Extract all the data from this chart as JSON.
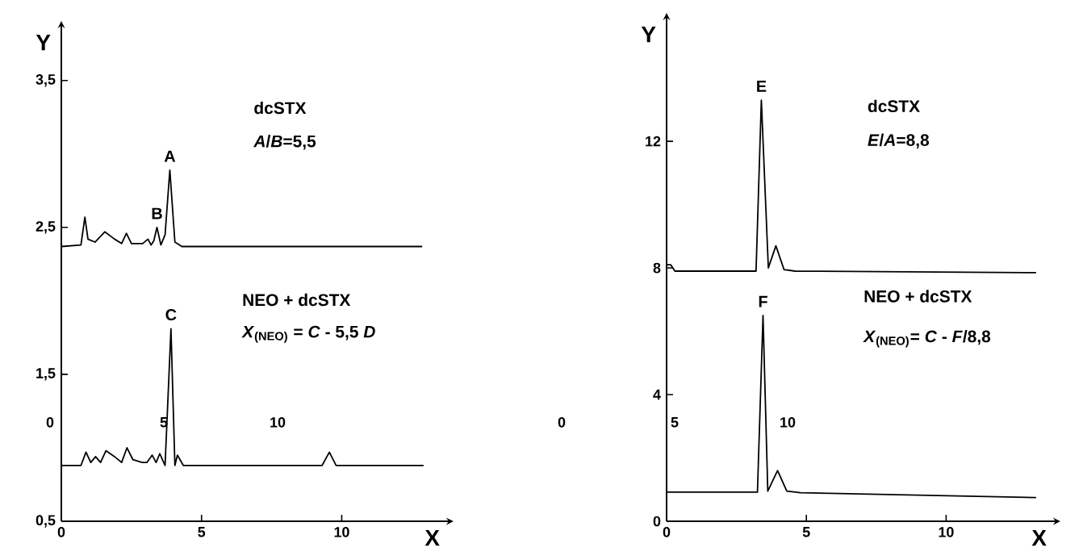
{
  "chart_data": [
    {
      "type": "line",
      "xlabel": "X",
      "ylabel": "Y",
      "xlim": [
        0,
        13.7
      ],
      "ylim": [
        0.5,
        3.85
      ],
      "xticks": [
        0,
        5,
        10
      ],
      "yticks": [
        {
          "value": 0.5,
          "label": "0,5"
        },
        {
          "value": 1.5,
          "label": "1,5"
        },
        {
          "value": 2.5,
          "label": "2,5"
        },
        {
          "value": 3.5,
          "label": "3,5"
        }
      ],
      "x2lim": [
        0,
        10
      ],
      "x2ticks": [
        0,
        5,
        10
      ],
      "series": [
        {
          "color": "#000000",
          "x": [
            0,
            0.7,
            0.84,
            0.95,
            1.2,
            1.55,
            1.9,
            2.15,
            2.32,
            2.5,
            2.9,
            3.09,
            3.2,
            3.3,
            3.41,
            3.55,
            3.7,
            3.87,
            4.05,
            4.3,
            12.85
          ],
          "values": [
            2.37,
            2.38,
            2.57,
            2.42,
            2.4,
            2.47,
            2.42,
            2.39,
            2.46,
            2.39,
            2.39,
            2.42,
            2.38,
            2.41,
            2.5,
            2.38,
            2.45,
            2.89,
            2.4,
            2.37,
            2.37
          ]
        },
        {
          "color": "#000000",
          "x": [
            0,
            0.7,
            0.88,
            1.05,
            1.22,
            1.4,
            1.59,
            1.9,
            2.15,
            2.34,
            2.55,
            2.89,
            3.05,
            3.24,
            3.38,
            3.51,
            3.7,
            3.91,
            4.05,
            4.14,
            4.35,
            9.3,
            9.56,
            9.8,
            12.9
          ],
          "values": [
            0.88,
            0.88,
            0.97,
            0.9,
            0.94,
            0.9,
            0.98,
            0.94,
            0.9,
            1.0,
            0.92,
            0.9,
            0.9,
            0.95,
            0.9,
            0.96,
            0.88,
            1.81,
            0.88,
            0.95,
            0.88,
            0.88,
            0.97,
            0.88,
            0.88
          ]
        }
      ],
      "annotations": [
        "dcSTX",
        "*A*/*B*=5,5",
        "NEO + dcSTX",
        "*X*$_{(NEO)}$ = *C* - 5,5 *D*",
        {
          "text": "A",
          "x": 3.87,
          "y": 2.89
        },
        {
          "text": "B",
          "x": 3.41,
          "y": 2.5
        },
        {
          "text": "C",
          "x": 3.91,
          "y": 1.81
        }
      ]
    },
    {
      "type": "line",
      "xlabel": "X",
      "ylabel": "Y",
      "xlim": [
        0,
        13.8
      ],
      "ylim": [
        0,
        15.8
      ],
      "xticks": [
        0,
        5,
        10
      ],
      "yticks": [
        0,
        4,
        8,
        12
      ],
      "x2lim": [
        0,
        10
      ],
      "x2ticks": [
        0,
        5,
        10
      ],
      "series": [
        {
          "color": "#000000",
          "x": [
            0,
            0.15,
            0.3,
            3.2,
            3.39,
            3.64,
            3.91,
            4.2,
            4.6,
            13.2
          ],
          "values": [
            8.1,
            8.1,
            7.9,
            7.9,
            13.3,
            8.0,
            8.7,
            7.95,
            7.9,
            7.85
          ]
        },
        {
          "color": "#000000",
          "x": [
            0,
            3.25,
            3.45,
            3.62,
            3.97,
            4.3,
            4.8,
            13.2
          ],
          "values": [
            0.92,
            0.92,
            6.5,
            0.95,
            1.6,
            0.95,
            0.9,
            0.75
          ]
        }
      ],
      "annotations": [
        "dcSTX",
        "*E*/*A*=8,8",
        "NEO + dcSTX",
        "*X*$_{(NEO)}$= *C* - *F*/8,8",
        {
          "text": "E",
          "x": 3.39,
          "y": 13.3
        },
        {
          "text": "F",
          "x": 3.45,
          "y": 6.5
        }
      ]
    }
  ]
}
